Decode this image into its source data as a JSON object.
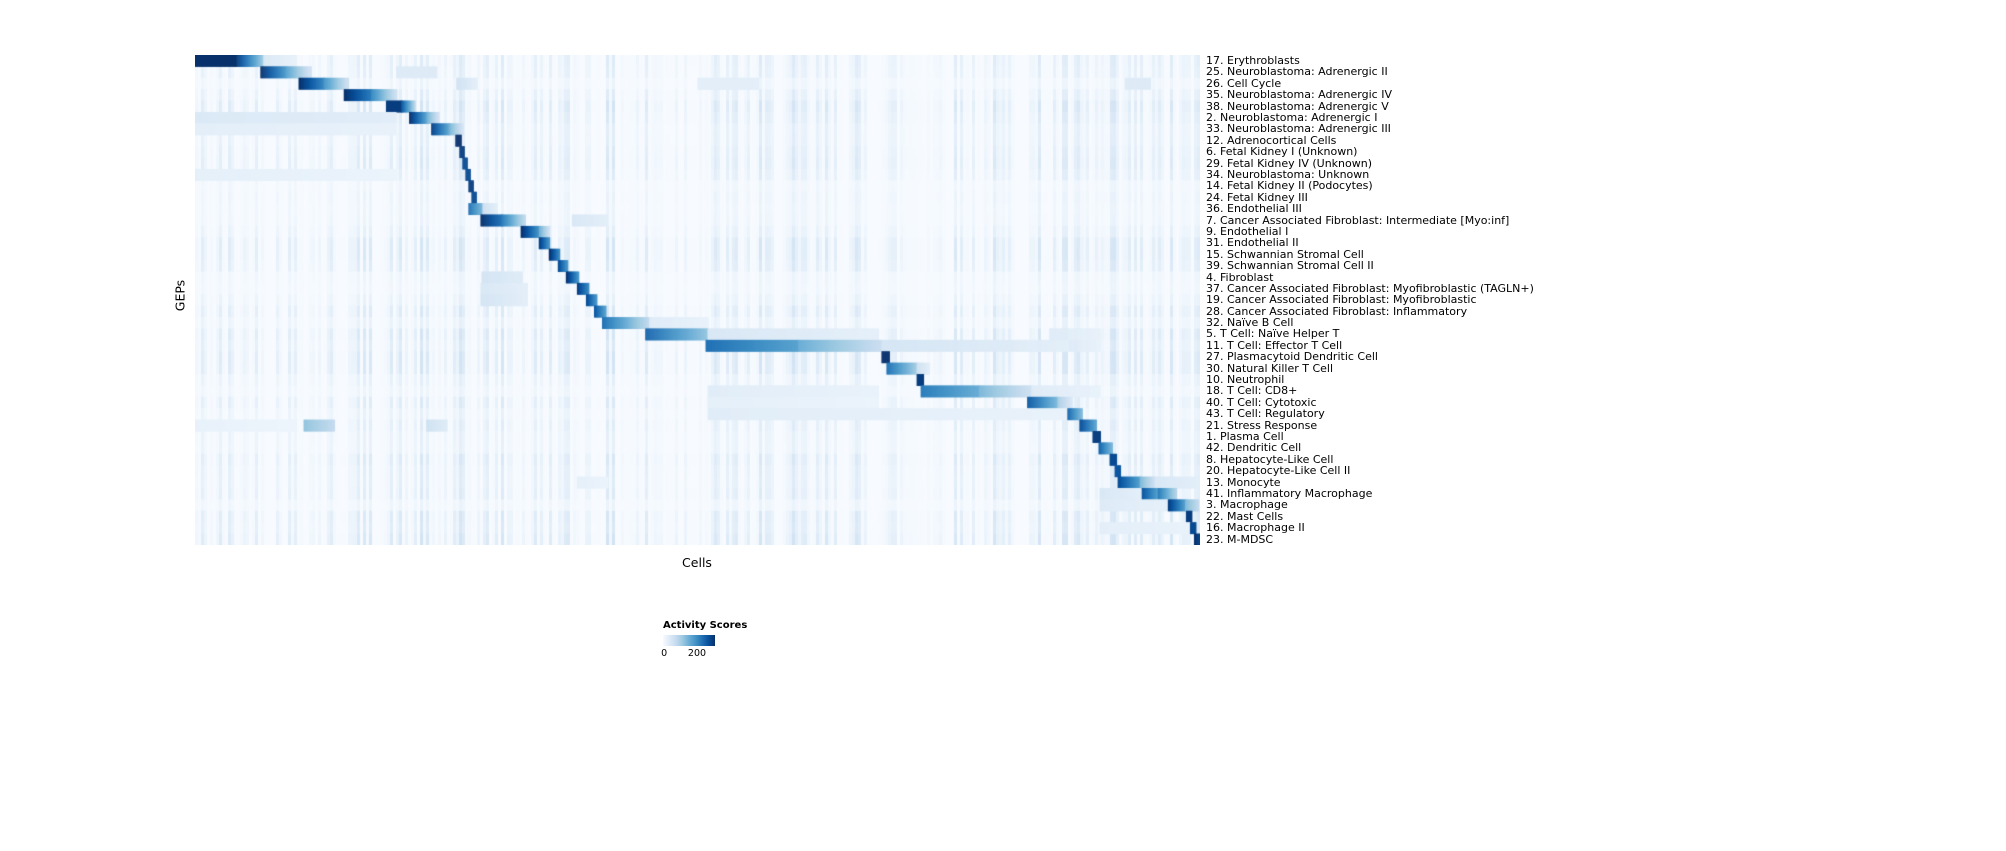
{
  "figure": {
    "ylabel": "GEPs",
    "xlabel": "Cells"
  },
  "legend": {
    "title": "Activity Scores",
    "tick_min": "0",
    "tick_max": "200"
  },
  "colors": {
    "background": "#ffffff",
    "colormap": "Blues",
    "colormap_low": "#f7fbff",
    "colormap_high": "#08306b"
  },
  "chart_data": {
    "type": "heatmap",
    "title": "",
    "xlabel": "Cells",
    "ylabel": "GEPs",
    "legend": {
      "title": "Activity Scores",
      "min": 0,
      "max": 200,
      "position": "bottom"
    },
    "value_range": [
      0,
      200
    ],
    "block_format": "[x0_fraction, x1_fraction, value_at_x0, value_at_x1] along the Cells axis",
    "rows": [
      {
        "label": "17. Erythroblasts",
        "blocks": [
          [
            0.0,
            0.04,
            210,
            210
          ],
          [
            0.04,
            0.068,
            200,
            70
          ],
          [
            0.068,
            0.1,
            30,
            15
          ]
        ]
      },
      {
        "label": "25. Neuroblastoma: Adrenergic II",
        "blocks": [
          [
            0.065,
            0.09,
            200,
            120
          ],
          [
            0.09,
            0.115,
            110,
            35
          ],
          [
            0.2,
            0.24,
            25,
            25
          ]
        ]
      },
      {
        "label": "26. Cell Cycle",
        "blocks": [
          [
            0.103,
            0.128,
            200,
            130
          ],
          [
            0.128,
            0.152,
            120,
            40
          ],
          [
            0.26,
            0.28,
            40,
            20
          ],
          [
            0.5,
            0.56,
            20,
            20
          ],
          [
            0.925,
            0.95,
            25,
            25
          ]
        ]
      },
      {
        "label": "35. Neuroblastoma: Adrenergic IV",
        "blocks": [
          [
            0.148,
            0.175,
            200,
            140
          ],
          [
            0.175,
            0.2,
            130,
            40
          ]
        ]
      },
      {
        "label": "38. Neuroblastoma: Adrenergic V",
        "blocks": [
          [
            0.19,
            0.205,
            190,
            190
          ],
          [
            0.205,
            0.218,
            170,
            60
          ]
        ]
      },
      {
        "label": "2. Neuroblastoma: Adrenergic I",
        "blocks": [
          [
            0.0,
            0.2,
            28,
            22
          ],
          [
            0.213,
            0.23,
            200,
            110
          ],
          [
            0.23,
            0.242,
            100,
            40
          ]
        ]
      },
      {
        "label": "33. Neuroblastoma: Adrenergic III",
        "blocks": [
          [
            0.0,
            0.2,
            20,
            15
          ],
          [
            0.235,
            0.252,
            190,
            110
          ],
          [
            0.252,
            0.266,
            100,
            35
          ]
        ]
      },
      {
        "label": "12. Adrenocortical Cells",
        "blocks": [
          [
            0.259,
            0.264,
            200,
            200
          ]
        ]
      },
      {
        "label": "6. Fetal Kidney I (Unknown)",
        "blocks": [
          [
            0.263,
            0.267,
            190,
            190
          ]
        ]
      },
      {
        "label": "29. Fetal Kidney IV (Unknown)",
        "blocks": [
          [
            0.266,
            0.27,
            180,
            180
          ]
        ]
      },
      {
        "label": "34. Neuroblastoma: Unknown",
        "blocks": [
          [
            0.0,
            0.2,
            18,
            12
          ],
          [
            0.269,
            0.273,
            180,
            180
          ]
        ]
      },
      {
        "label": "14. Fetal Kidney II (Podocytes)",
        "blocks": [
          [
            0.272,
            0.276,
            190,
            190
          ]
        ]
      },
      {
        "label": "24. Fetal Kidney III",
        "blocks": [
          [
            0.275,
            0.279,
            180,
            180
          ]
        ]
      },
      {
        "label": "36. Endothelial III",
        "blocks": [
          [
            0.272,
            0.286,
            150,
            90
          ],
          [
            0.286,
            0.3,
            40,
            20
          ]
        ]
      },
      {
        "label": "7. Cancer Associated Fibroblast: Intermediate [Myo:inf]",
        "blocks": [
          [
            0.284,
            0.305,
            200,
            150
          ],
          [
            0.305,
            0.328,
            140,
            50
          ],
          [
            0.375,
            0.41,
            30,
            20
          ]
        ]
      },
      {
        "label": "9. Endothelial I",
        "blocks": [
          [
            0.324,
            0.342,
            200,
            120
          ],
          [
            0.342,
            0.352,
            100,
            40
          ]
        ]
      },
      {
        "label": "31. Endothelial II",
        "blocks": [
          [
            0.342,
            0.352,
            190,
            120
          ]
        ]
      },
      {
        "label": "15. Schwannian Stromal Cell",
        "blocks": [
          [
            0.352,
            0.362,
            200,
            130
          ]
        ]
      },
      {
        "label": "39. Schwannian Stromal Cell II",
        "blocks": [
          [
            0.361,
            0.37,
            180,
            120
          ]
        ]
      },
      {
        "label": "4. Fibroblast",
        "blocks": [
          [
            0.285,
            0.325,
            35,
            25
          ],
          [
            0.369,
            0.381,
            200,
            120
          ]
        ]
      },
      {
        "label": "37. Cancer Associated Fibroblast: Myofibroblastic (TAGLN+)",
        "blocks": [
          [
            0.284,
            0.33,
            30,
            20
          ],
          [
            0.38,
            0.391,
            190,
            130
          ]
        ]
      },
      {
        "label": "19. Cancer Associated Fibroblast: Myofibroblastic",
        "blocks": [
          [
            0.284,
            0.33,
            35,
            20
          ],
          [
            0.389,
            0.399,
            180,
            120
          ]
        ]
      },
      {
        "label": "28. Cancer Associated Fibroblast: Inflammatory",
        "blocks": [
          [
            0.397,
            0.408,
            170,
            110
          ]
        ]
      },
      {
        "label": "32. Naïve B Cell",
        "blocks": [
          [
            0.405,
            0.452,
            150,
            50
          ],
          [
            0.452,
            0.51,
            25,
            15
          ]
        ]
      },
      {
        "label": "5. T Cell: Naïve Helper T",
        "blocks": [
          [
            0.448,
            0.51,
            160,
            80
          ],
          [
            0.51,
            0.68,
            30,
            18
          ],
          [
            0.85,
            0.9,
            25,
            15
          ]
        ]
      },
      {
        "label": "11. T Cell: Effector T Cell",
        "blocks": [
          [
            0.508,
            0.6,
            150,
            110
          ],
          [
            0.6,
            0.683,
            100,
            45
          ],
          [
            0.683,
            0.87,
            35,
            20
          ],
          [
            0.87,
            0.9,
            25,
            15
          ]
        ]
      },
      {
        "label": "27. Plasmacytoid Dendritic Cell",
        "blocks": [
          [
            0.683,
            0.69,
            200,
            200
          ]
        ]
      },
      {
        "label": "30. Natural Killer T Cell",
        "blocks": [
          [
            0.688,
            0.718,
            150,
            70
          ],
          [
            0.718,
            0.73,
            40,
            20
          ]
        ]
      },
      {
        "label": "10. Neutrophil",
        "blocks": [
          [
            0.718,
            0.724,
            190,
            190
          ]
        ]
      },
      {
        "label": "18. T Cell: CD8+",
        "blocks": [
          [
            0.51,
            0.68,
            22,
            14
          ],
          [
            0.722,
            0.78,
            140,
            100
          ],
          [
            0.78,
            0.832,
            90,
            40
          ],
          [
            0.832,
            0.9,
            25,
            15
          ]
        ]
      },
      {
        "label": "40. T Cell: Cytotoxic",
        "blocks": [
          [
            0.51,
            0.68,
            18,
            12
          ],
          [
            0.828,
            0.858,
            170,
            90
          ],
          [
            0.858,
            0.872,
            70,
            30
          ]
        ]
      },
      {
        "label": "43. T Cell: Regulatory",
        "blocks": [
          [
            0.51,
            0.87,
            22,
            14
          ],
          [
            0.868,
            0.882,
            160,
            90
          ]
        ]
      },
      {
        "label": "21. Stress Response",
        "blocks": [
          [
            0.0,
            0.1,
            15,
            10
          ],
          [
            0.108,
            0.138,
            80,
            50
          ],
          [
            0.23,
            0.25,
            40,
            25
          ],
          [
            0.88,
            0.896,
            180,
            110
          ]
        ]
      },
      {
        "label": "1. Plasma Cell",
        "blocks": [
          [
            0.893,
            0.9,
            190,
            190
          ]
        ]
      },
      {
        "label": "42. Dendritic Cell",
        "blocks": [
          [
            0.899,
            0.912,
            160,
            90
          ]
        ]
      },
      {
        "label": "8. Hepatocyte-Like Cell",
        "blocks": [
          [
            0.91,
            0.916,
            180,
            180
          ]
        ]
      },
      {
        "label": "20. Hepatocyte-Like Cell II",
        "blocks": [
          [
            0.915,
            0.92,
            170,
            170
          ]
        ]
      },
      {
        "label": "13. Monocyte",
        "blocks": [
          [
            0.38,
            0.41,
            18,
            12
          ],
          [
            0.918,
            0.94,
            180,
            110
          ],
          [
            0.94,
            0.955,
            90,
            40
          ],
          [
            0.955,
            1.0,
            30,
            20
          ]
        ]
      },
      {
        "label": "41. Inflammatory Macrophage",
        "blocks": [
          [
            0.9,
            0.94,
            30,
            20
          ],
          [
            0.942,
            0.958,
            170,
            110
          ],
          [
            0.958,
            0.976,
            140,
            60
          ]
        ]
      },
      {
        "label": "3. Macrophage",
        "blocks": [
          [
            0.9,
            0.968,
            25,
            18
          ],
          [
            0.968,
            0.985,
            190,
            110
          ],
          [
            0.985,
            0.998,
            90,
            50
          ]
        ]
      },
      {
        "label": "22. Mast Cells",
        "blocks": [
          [
            0.986,
            0.991,
            190,
            190
          ]
        ]
      },
      {
        "label": "16. Macrophage II",
        "blocks": [
          [
            0.9,
            0.99,
            20,
            14
          ],
          [
            0.99,
            0.995,
            180,
            180
          ]
        ]
      },
      {
        "label": "23. M-MDSC",
        "blocks": [
          [
            0.994,
            1.0,
            200,
            180
          ]
        ]
      }
    ]
  }
}
